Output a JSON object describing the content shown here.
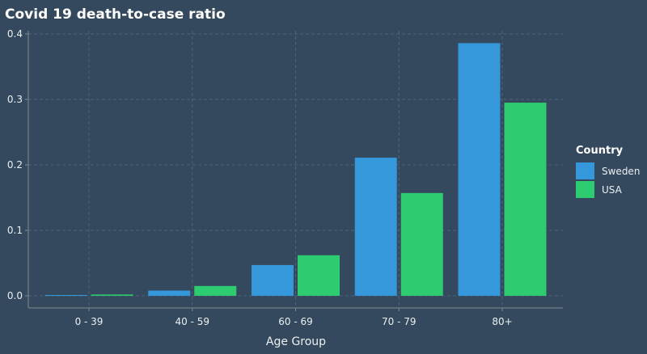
{
  "chart_data": {
    "type": "bar",
    "title": "Covid 19 death-to-case ratio",
    "xlabel": "Age Group",
    "ylabel": "",
    "categories": [
      "0 - 39",
      "40 - 59",
      "60 - 69",
      "70 - 79",
      "80+"
    ],
    "series": [
      {
        "name": "Sweden",
        "color": "#3498db",
        "values": [
          0.001,
          0.008,
          0.047,
          0.211,
          0.386
        ]
      },
      {
        "name": "USA",
        "color": "#2ecc71",
        "values": [
          0.002,
          0.015,
          0.062,
          0.157,
          0.295
        ]
      }
    ],
    "ylim": [
      0,
      0.4
    ],
    "yticks": [
      "0.0",
      "0.1",
      "0.2",
      "0.3",
      "0.4"
    ],
    "grid": true,
    "legend": {
      "title": "Country",
      "position": "right"
    }
  }
}
